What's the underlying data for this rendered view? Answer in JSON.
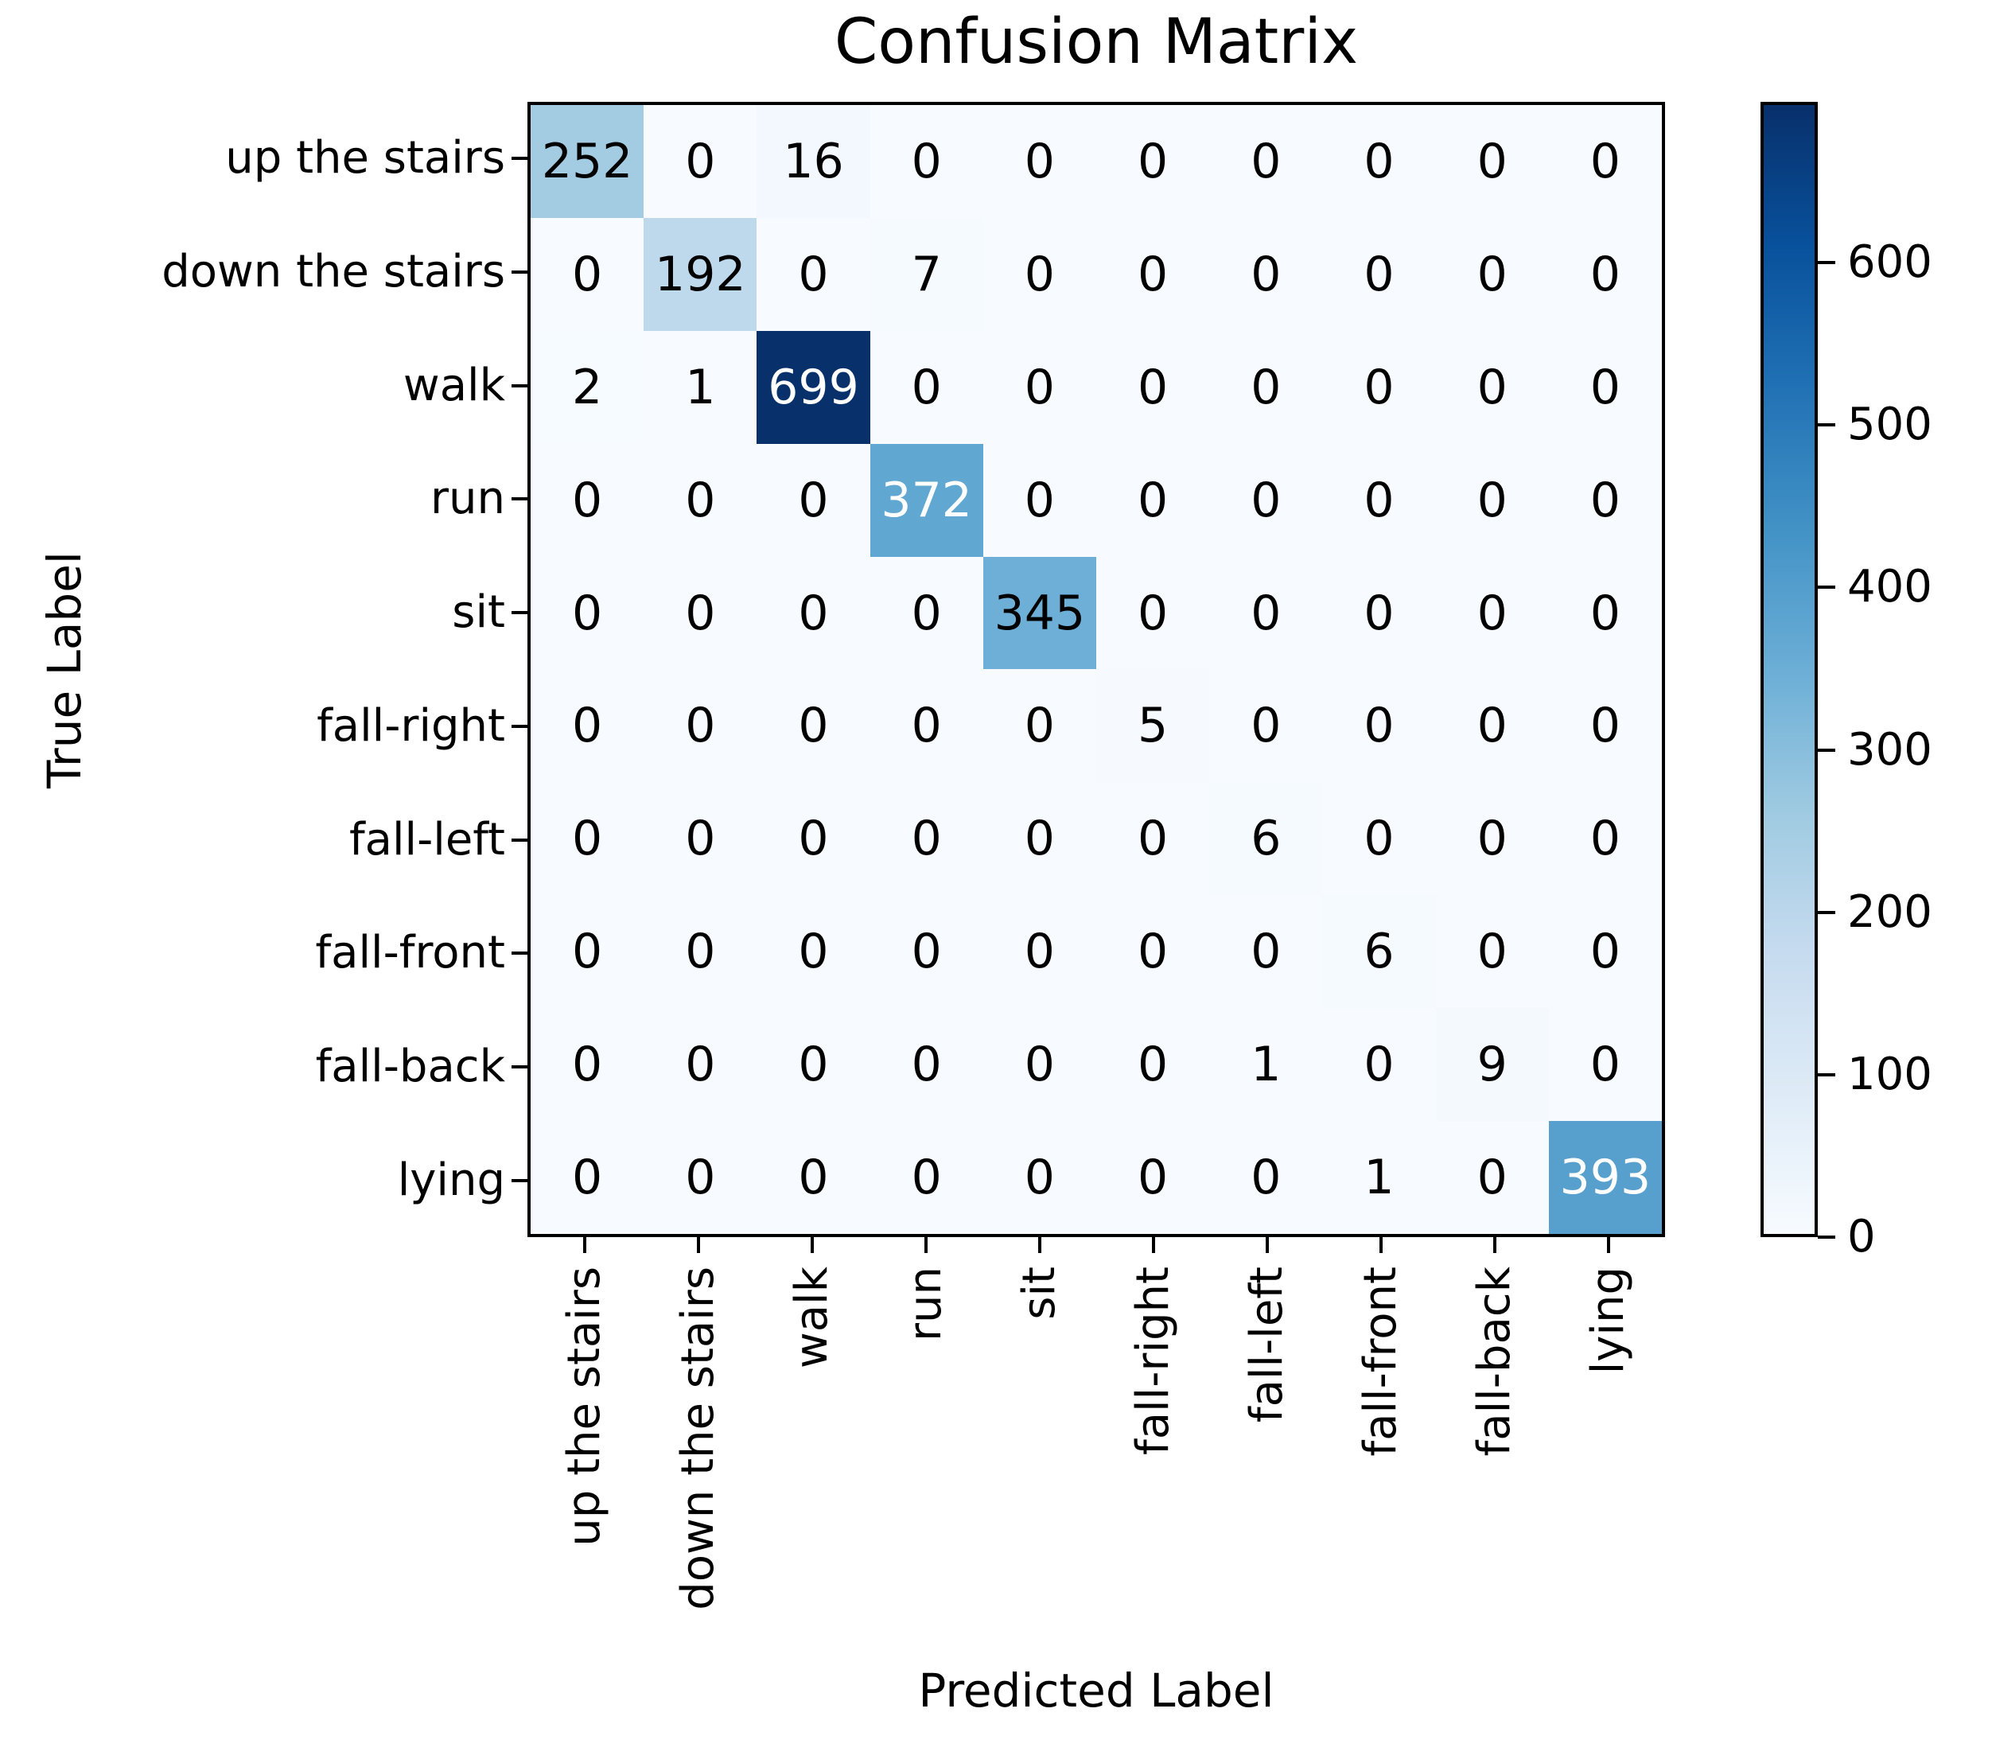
{
  "figure": {
    "title": "Confusion Matrix",
    "xlabel": "Predicted Label",
    "ylabel": "True Label"
  },
  "chart_data": {
    "type": "heatmap",
    "title": "Confusion Matrix",
    "xlabel": "Predicted Label",
    "ylabel": "True Label",
    "x_categories": [
      "up the stairs",
      "down the stairs",
      "walk",
      "run",
      "sit",
      "fall-right",
      "fall-left",
      "fall-front",
      "fall-back",
      "lying"
    ],
    "y_categories": [
      "up the stairs",
      "down the stairs",
      "walk",
      "run",
      "sit",
      "fall-right",
      "fall-left",
      "fall-front",
      "fall-back",
      "lying"
    ],
    "matrix": [
      [
        252,
        0,
        16,
        0,
        0,
        0,
        0,
        0,
        0,
        0
      ],
      [
        0,
        192,
        0,
        7,
        0,
        0,
        0,
        0,
        0,
        0
      ],
      [
        2,
        1,
        699,
        0,
        0,
        0,
        0,
        0,
        0,
        0
      ],
      [
        0,
        0,
        0,
        372,
        0,
        0,
        0,
        0,
        0,
        0
      ],
      [
        0,
        0,
        0,
        0,
        345,
        0,
        0,
        0,
        0,
        0
      ],
      [
        0,
        0,
        0,
        0,
        0,
        5,
        0,
        0,
        0,
        0
      ],
      [
        0,
        0,
        0,
        0,
        0,
        0,
        6,
        0,
        0,
        0
      ],
      [
        0,
        0,
        0,
        0,
        0,
        0,
        0,
        6,
        0,
        0
      ],
      [
        0,
        0,
        0,
        0,
        0,
        0,
        1,
        0,
        9,
        0
      ],
      [
        0,
        0,
        0,
        0,
        0,
        0,
        0,
        1,
        0,
        393
      ]
    ],
    "vmin": 0,
    "vmax": 699,
    "colorbar_ticks": [
      0,
      100,
      200,
      300,
      400,
      500,
      600
    ],
    "colormap": "Blues",
    "colormap_stops": [
      {
        "pos": 0.0,
        "color": "#f7fbff"
      },
      {
        "pos": 0.125,
        "color": "#deebf7"
      },
      {
        "pos": 0.25,
        "color": "#c6dbef"
      },
      {
        "pos": 0.375,
        "color": "#9ecae1"
      },
      {
        "pos": 0.5,
        "color": "#6baed6"
      },
      {
        "pos": 0.625,
        "color": "#4292c6"
      },
      {
        "pos": 0.75,
        "color": "#2171b5"
      },
      {
        "pos": 0.875,
        "color": "#08519c"
      },
      {
        "pos": 1.0,
        "color": "#08306b"
      }
    ],
    "annotation_text_colors": {
      "on_light": "#000000",
      "on_dark": "#ffffff"
    },
    "axis_color": "#000000",
    "grid": false,
    "legend_position": "right-colorbar"
  }
}
